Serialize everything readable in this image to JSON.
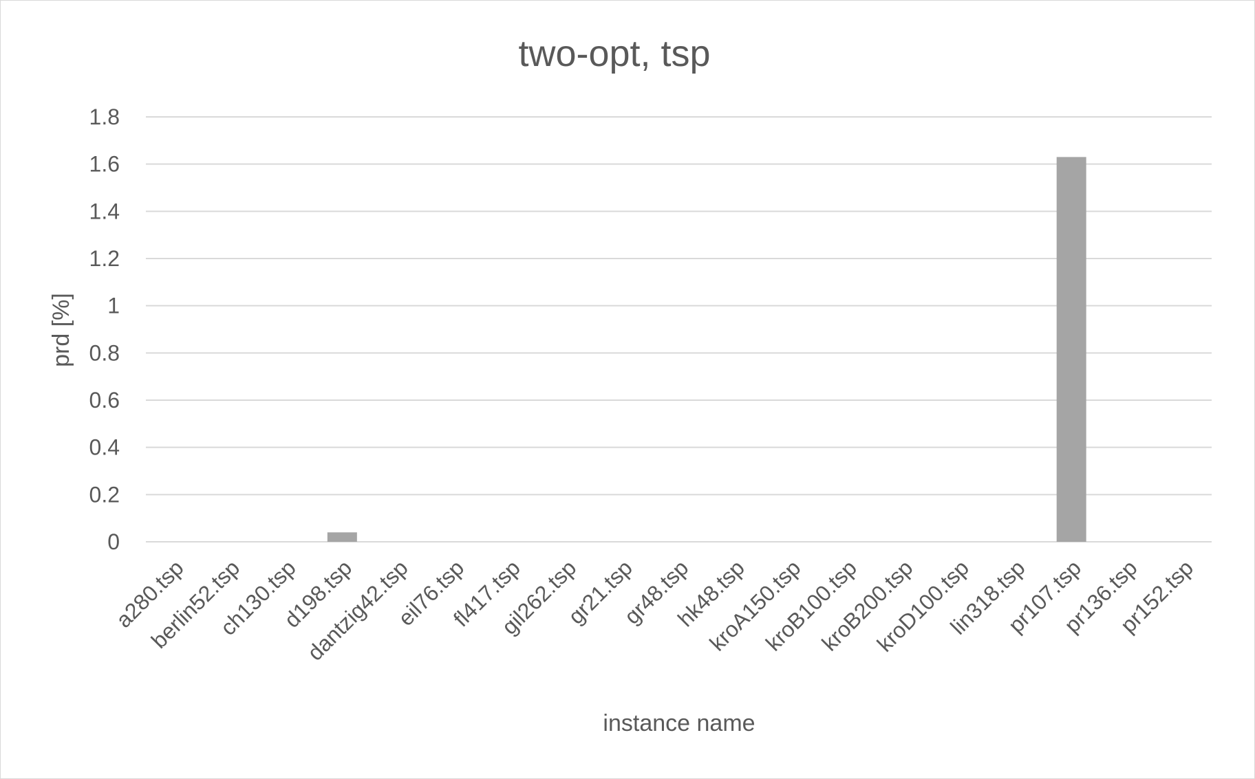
{
  "chart_data": {
    "type": "bar",
    "title": "two-opt, tsp",
    "xlabel": "instance name",
    "ylabel": "prd [%]",
    "categories": [
      "a280.tsp",
      "berlin52.tsp",
      "ch130.tsp",
      "d198.tsp",
      "dantzig42.tsp",
      "eil76.tsp",
      "fl417.tsp",
      "gil262.tsp",
      "gr21.tsp",
      "gr48.tsp",
      "hk48.tsp",
      "kroA150.tsp",
      "kroB100.tsp",
      "kroB200.tsp",
      "kroD100.tsp",
      "lin318.tsp",
      "pr107.tsp",
      "pr136.tsp",
      "pr152.tsp"
    ],
    "values": [
      0,
      0,
      0,
      0.04,
      0,
      0,
      0,
      0,
      0,
      0,
      0,
      0,
      0,
      0,
      0,
      0,
      1.63,
      0,
      0
    ],
    "ylim": [
      0,
      1.8
    ],
    "yticks": [
      "0",
      "0.2",
      "0.4",
      "0.6",
      "0.8",
      "1",
      "1.2",
      "1.4",
      "1.6",
      "1.8"
    ],
    "grid": true,
    "bar_color": "#a5a5a5",
    "grid_color": "#d9d9d9",
    "text_color": "#595959"
  }
}
